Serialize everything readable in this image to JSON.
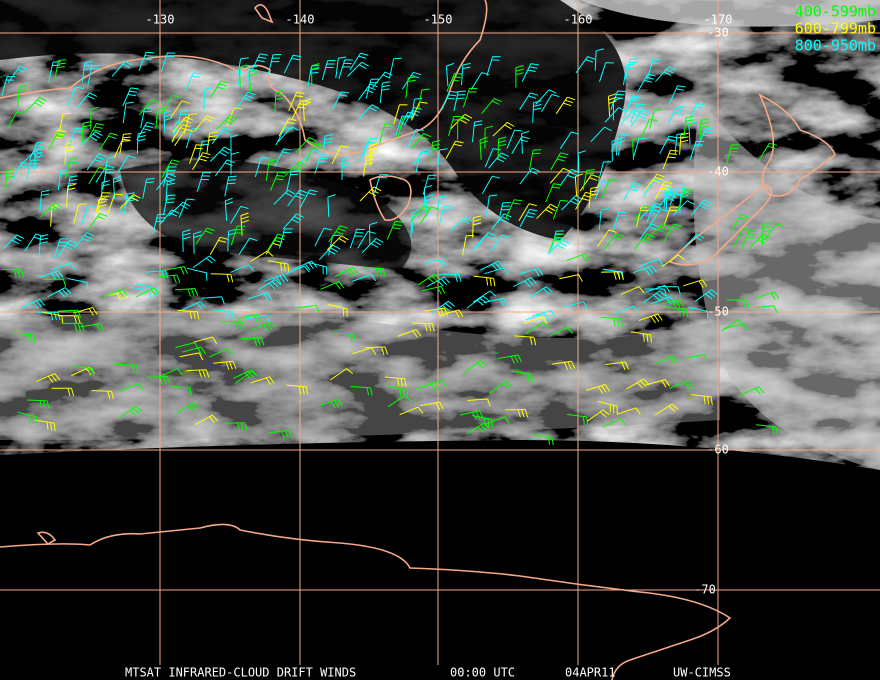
{
  "longitude_labels": [
    "-130",
    "-140",
    "-150",
    "-160",
    "-170"
  ],
  "latitude_labels": [
    "-30",
    "-40",
    "-50",
    "-60",
    "-70"
  ],
  "legend": [
    {
      "label": "400-599mb",
      "color": "#00ff00"
    },
    {
      "label": "600-799mb",
      "color": "#ffff00"
    },
    {
      "label": "800-950mb",
      "color": "#00ffff"
    }
  ],
  "footer": [
    "MTSAT INFRARED-CLOUD DRIFT WINDS",
    "00:00 UTC",
    "04APR11",
    "UW-CIMSS"
  ]
}
